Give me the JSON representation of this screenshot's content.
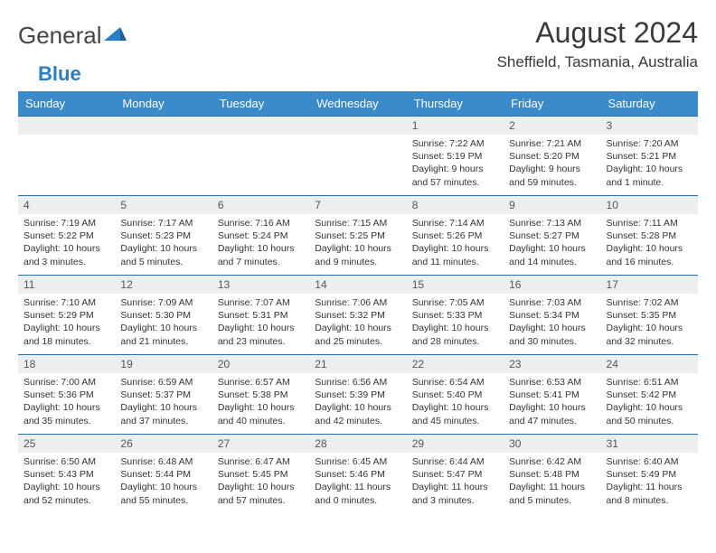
{
  "brand": {
    "part1": "General",
    "part2": "Blue",
    "logo_fill": "#2a7fc4"
  },
  "title": "August 2024",
  "location": "Sheffield, Tasmania, Australia",
  "colors": {
    "header_bg": "#3b8aca",
    "header_text": "#ffffff",
    "row_divider": "#2b6fa6",
    "daynum_bg": "#eceeef",
    "body_text": "#333333"
  },
  "weekdays": [
    "Sunday",
    "Monday",
    "Tuesday",
    "Wednesday",
    "Thursday",
    "Friday",
    "Saturday"
  ],
  "weeks": [
    [
      null,
      null,
      null,
      null,
      {
        "n": "1",
        "sr": "Sunrise: 7:22 AM",
        "ss": "Sunset: 5:19 PM",
        "dl": "Daylight: 9 hours and 57 minutes."
      },
      {
        "n": "2",
        "sr": "Sunrise: 7:21 AM",
        "ss": "Sunset: 5:20 PM",
        "dl": "Daylight: 9 hours and 59 minutes."
      },
      {
        "n": "3",
        "sr": "Sunrise: 7:20 AM",
        "ss": "Sunset: 5:21 PM",
        "dl": "Daylight: 10 hours and 1 minute."
      }
    ],
    [
      {
        "n": "4",
        "sr": "Sunrise: 7:19 AM",
        "ss": "Sunset: 5:22 PM",
        "dl": "Daylight: 10 hours and 3 minutes."
      },
      {
        "n": "5",
        "sr": "Sunrise: 7:17 AM",
        "ss": "Sunset: 5:23 PM",
        "dl": "Daylight: 10 hours and 5 minutes."
      },
      {
        "n": "6",
        "sr": "Sunrise: 7:16 AM",
        "ss": "Sunset: 5:24 PM",
        "dl": "Daylight: 10 hours and 7 minutes."
      },
      {
        "n": "7",
        "sr": "Sunrise: 7:15 AM",
        "ss": "Sunset: 5:25 PM",
        "dl": "Daylight: 10 hours and 9 minutes."
      },
      {
        "n": "8",
        "sr": "Sunrise: 7:14 AM",
        "ss": "Sunset: 5:26 PM",
        "dl": "Daylight: 10 hours and 11 minutes."
      },
      {
        "n": "9",
        "sr": "Sunrise: 7:13 AM",
        "ss": "Sunset: 5:27 PM",
        "dl": "Daylight: 10 hours and 14 minutes."
      },
      {
        "n": "10",
        "sr": "Sunrise: 7:11 AM",
        "ss": "Sunset: 5:28 PM",
        "dl": "Daylight: 10 hours and 16 minutes."
      }
    ],
    [
      {
        "n": "11",
        "sr": "Sunrise: 7:10 AM",
        "ss": "Sunset: 5:29 PM",
        "dl": "Daylight: 10 hours and 18 minutes."
      },
      {
        "n": "12",
        "sr": "Sunrise: 7:09 AM",
        "ss": "Sunset: 5:30 PM",
        "dl": "Daylight: 10 hours and 21 minutes."
      },
      {
        "n": "13",
        "sr": "Sunrise: 7:07 AM",
        "ss": "Sunset: 5:31 PM",
        "dl": "Daylight: 10 hours and 23 minutes."
      },
      {
        "n": "14",
        "sr": "Sunrise: 7:06 AM",
        "ss": "Sunset: 5:32 PM",
        "dl": "Daylight: 10 hours and 25 minutes."
      },
      {
        "n": "15",
        "sr": "Sunrise: 7:05 AM",
        "ss": "Sunset: 5:33 PM",
        "dl": "Daylight: 10 hours and 28 minutes."
      },
      {
        "n": "16",
        "sr": "Sunrise: 7:03 AM",
        "ss": "Sunset: 5:34 PM",
        "dl": "Daylight: 10 hours and 30 minutes."
      },
      {
        "n": "17",
        "sr": "Sunrise: 7:02 AM",
        "ss": "Sunset: 5:35 PM",
        "dl": "Daylight: 10 hours and 32 minutes."
      }
    ],
    [
      {
        "n": "18",
        "sr": "Sunrise: 7:00 AM",
        "ss": "Sunset: 5:36 PM",
        "dl": "Daylight: 10 hours and 35 minutes."
      },
      {
        "n": "19",
        "sr": "Sunrise: 6:59 AM",
        "ss": "Sunset: 5:37 PM",
        "dl": "Daylight: 10 hours and 37 minutes."
      },
      {
        "n": "20",
        "sr": "Sunrise: 6:57 AM",
        "ss": "Sunset: 5:38 PM",
        "dl": "Daylight: 10 hours and 40 minutes."
      },
      {
        "n": "21",
        "sr": "Sunrise: 6:56 AM",
        "ss": "Sunset: 5:39 PM",
        "dl": "Daylight: 10 hours and 42 minutes."
      },
      {
        "n": "22",
        "sr": "Sunrise: 6:54 AM",
        "ss": "Sunset: 5:40 PM",
        "dl": "Daylight: 10 hours and 45 minutes."
      },
      {
        "n": "23",
        "sr": "Sunrise: 6:53 AM",
        "ss": "Sunset: 5:41 PM",
        "dl": "Daylight: 10 hours and 47 minutes."
      },
      {
        "n": "24",
        "sr": "Sunrise: 6:51 AM",
        "ss": "Sunset: 5:42 PM",
        "dl": "Daylight: 10 hours and 50 minutes."
      }
    ],
    [
      {
        "n": "25",
        "sr": "Sunrise: 6:50 AM",
        "ss": "Sunset: 5:43 PM",
        "dl": "Daylight: 10 hours and 52 minutes."
      },
      {
        "n": "26",
        "sr": "Sunrise: 6:48 AM",
        "ss": "Sunset: 5:44 PM",
        "dl": "Daylight: 10 hours and 55 minutes."
      },
      {
        "n": "27",
        "sr": "Sunrise: 6:47 AM",
        "ss": "Sunset: 5:45 PM",
        "dl": "Daylight: 10 hours and 57 minutes."
      },
      {
        "n": "28",
        "sr": "Sunrise: 6:45 AM",
        "ss": "Sunset: 5:46 PM",
        "dl": "Daylight: 11 hours and 0 minutes."
      },
      {
        "n": "29",
        "sr": "Sunrise: 6:44 AM",
        "ss": "Sunset: 5:47 PM",
        "dl": "Daylight: 11 hours and 3 minutes."
      },
      {
        "n": "30",
        "sr": "Sunrise: 6:42 AM",
        "ss": "Sunset: 5:48 PM",
        "dl": "Daylight: 11 hours and 5 minutes."
      },
      {
        "n": "31",
        "sr": "Sunrise: 6:40 AM",
        "ss": "Sunset: 5:49 PM",
        "dl": "Daylight: 11 hours and 8 minutes."
      }
    ]
  ]
}
